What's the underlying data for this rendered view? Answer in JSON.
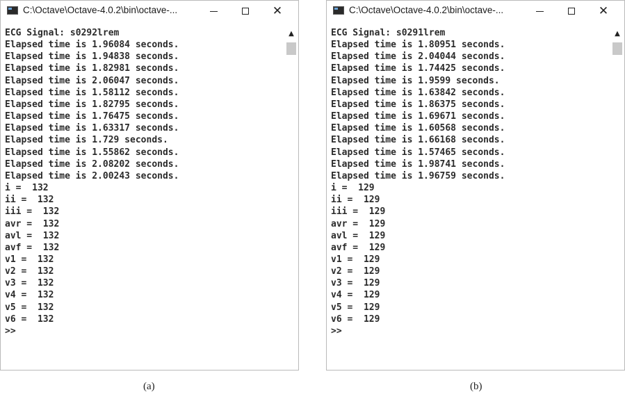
{
  "window_a": {
    "title": "C:\\Octave\\Octave-4.0.2\\bin\\octave-...",
    "lines": [
      "ECG Signal: s0292lrem",
      "Elapsed time is 1.96084 seconds.",
      "Elapsed time is 1.94838 seconds.",
      "Elapsed time is 1.82981 seconds.",
      "Elapsed time is 2.06047 seconds.",
      "Elapsed time is 1.58112 seconds.",
      "Elapsed time is 1.82795 seconds.",
      "Elapsed time is 1.76475 seconds.",
      "Elapsed time is 1.63317 seconds.",
      "Elapsed time is 1.729 seconds.",
      "Elapsed time is 1.55862 seconds.",
      "Elapsed time is 2.08202 seconds.",
      "Elapsed time is 2.00243 seconds.",
      "i =  132",
      "ii =  132",
      "iii =  132",
      "avr =  132",
      "avl =  132",
      "avf =  132",
      "v1 =  132",
      "v2 =  132",
      "v3 =  132",
      "v4 =  132",
      "v5 =  132",
      "v6 =  132",
      ">>"
    ]
  },
  "window_b": {
    "title": "C:\\Octave\\Octave-4.0.2\\bin\\octave-...",
    "lines": [
      "ECG Signal: s0291lrem",
      "Elapsed time is 1.80951 seconds.",
      "Elapsed time is 2.04044 seconds.",
      "Elapsed time is 1.74425 seconds.",
      "Elapsed time is 1.9599 seconds.",
      "Elapsed time is 1.63842 seconds.",
      "Elapsed time is 1.86375 seconds.",
      "Elapsed time is 1.69671 seconds.",
      "Elapsed time is 1.60568 seconds.",
      "Elapsed time is 1.66168 seconds.",
      "Elapsed time is 1.57465 seconds.",
      "Elapsed time is 1.98741 seconds.",
      "Elapsed time is 1.96759 seconds.",
      "i =  129",
      "ii =  129",
      "iii =  129",
      "avr =  129",
      "avl =  129",
      "avf =  129",
      "v1 =  129",
      "v2 =  129",
      "v3 =  129",
      "v4 =  129",
      "v5 =  129",
      "v6 =  129",
      ">>"
    ]
  },
  "captions": {
    "a": "(a)",
    "b": "(b)"
  },
  "icons": {
    "minimize": "minimize-icon",
    "maximize": "maximize-icon",
    "close": "close-icon",
    "scroll_up": "chevron-up-icon"
  }
}
